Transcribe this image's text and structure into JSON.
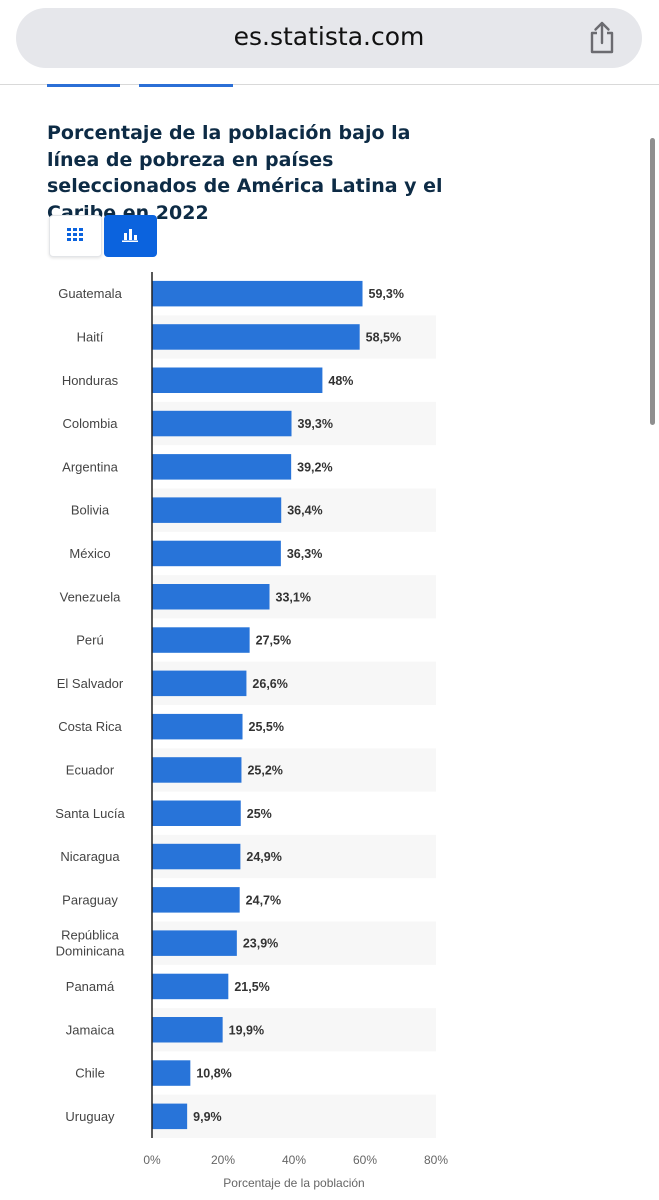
{
  "browser": {
    "url": "es.statista.com"
  },
  "page": {
    "title": "Porcentaje de la población bajo la línea de pobreza en países seleccionados de América Latina y el Caribe en 2022"
  },
  "view_toggle": {
    "options": [
      "table-view",
      "bar-chart-view"
    ],
    "selected": "bar-chart-view"
  },
  "colors": {
    "bar": "#2874d9",
    "accent": "#0b63de",
    "title": "#0d2b45",
    "stripe": "#f7f7f7"
  },
  "chart_data": {
    "type": "bar",
    "orientation": "horizontal",
    "title": "Porcentaje de la población bajo la línea de pobreza en países seleccionados de América Latina y el Caribe en 2022",
    "xlabel": "Porcentaje de la población",
    "ylabel": "",
    "xlim": [
      0,
      80
    ],
    "x_ticks": [
      "0%",
      "20%",
      "40%",
      "60%",
      "80%"
    ],
    "grid": false,
    "legend": "none",
    "categories": [
      "Guatemala",
      "Haití",
      "Honduras",
      "Colombia",
      "Argentina",
      "Bolivia",
      "México",
      "Venezuela",
      "Perú",
      "El Salvador",
      "Costa Rica",
      "Ecuador",
      "Santa Lucía",
      "Nicaragua",
      "Paraguay",
      "República Dominicana",
      "Panamá",
      "Jamaica",
      "Chile",
      "Uruguay"
    ],
    "values": [
      59.3,
      58.5,
      48,
      39.3,
      39.2,
      36.4,
      36.3,
      33.1,
      27.5,
      26.6,
      25.5,
      25.2,
      25,
      24.9,
      24.7,
      23.9,
      21.5,
      19.9,
      10.8,
      9.9
    ],
    "data_labels": [
      "59,3%",
      "58,5%",
      "48%",
      "39,3%",
      "39,2%",
      "36,4%",
      "36,3%",
      "33,1%",
      "27,5%",
      "26,6%",
      "25,5%",
      "25,2%",
      "25%",
      "24,9%",
      "24,7%",
      "23,9%",
      "21,5%",
      "19,9%",
      "10,8%",
      "9,9%"
    ]
  }
}
